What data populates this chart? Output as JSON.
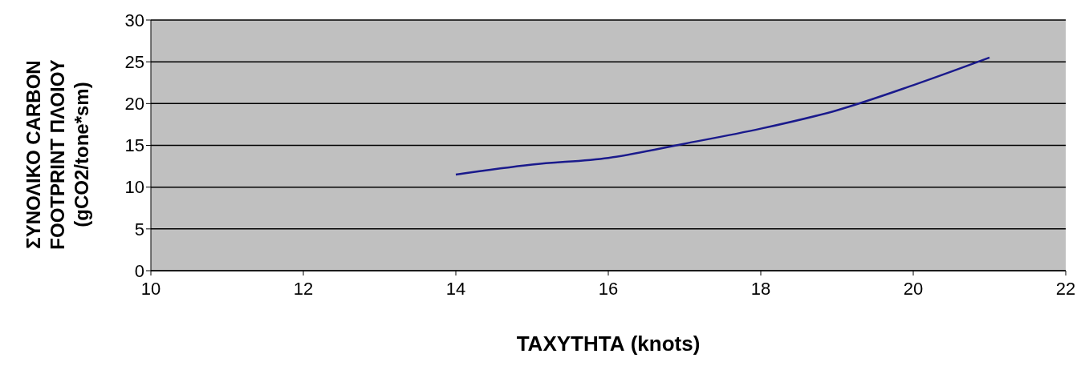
{
  "chart_data": {
    "type": "line",
    "xlabel": "ΤΑΧΥΤΗΤΑ (knots)",
    "ylabel": "ΣΥΝΟΛΙΚΟ CARBON\nFOOTPRINT ΠΛΟΙΟΥ\n(gCO2/tone*sm)",
    "x": [
      14,
      15,
      16,
      17,
      18,
      19,
      20,
      21
    ],
    "series": [
      {
        "color": "#1a1a8c",
        "values": [
          11.5,
          12.7,
          13.5,
          15.2,
          17,
          19.2,
          22.2,
          25.5
        ]
      }
    ],
    "xlim": [
      10,
      22
    ],
    "xticks": [
      10,
      12,
      14,
      16,
      18,
      20,
      22
    ],
    "ylim": [
      0,
      30
    ],
    "yticks": [
      0,
      5,
      10,
      15,
      20,
      25,
      30
    ],
    "grid": "y",
    "legend": false,
    "marker": "none",
    "line_style": "solid"
  }
}
